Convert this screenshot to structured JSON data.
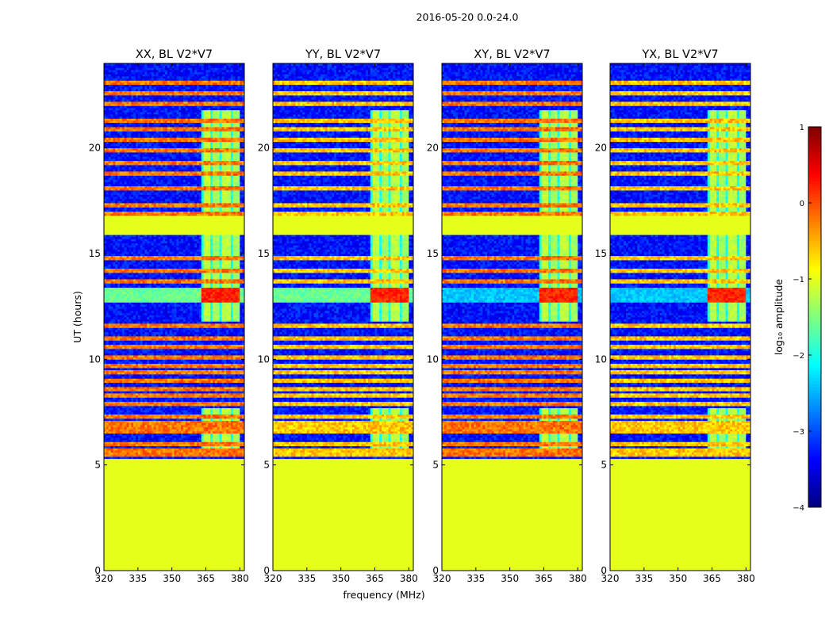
{
  "chart_data": {
    "type": "heatmap",
    "suptitle": "2016-05-20 0.0-24.0",
    "xlabel": "frequency (MHz)",
    "ylabel": "UT (hours)",
    "xlim": [
      320,
      382
    ],
    "ylim": [
      0,
      24
    ],
    "xticks": [
      320,
      335,
      350,
      365,
      380
    ],
    "yticks": [
      0,
      5,
      10,
      15,
      20
    ],
    "colormap": "jet",
    "colorbar": {
      "label": "log₁₀ amplitude",
      "vmin": -4,
      "vmax": 1,
      "ticks": [
        -4,
        -3,
        -2,
        -1,
        0,
        1
      ],
      "tick_labels": [
        "−4",
        "−3",
        "−2",
        "−1",
        "0",
        "1"
      ],
      "colors": [
        "#00007f",
        "#0000ff",
        "#007fff",
        "#00ffff",
        "#7fff7f",
        "#ffff00",
        "#ff7f00",
        "#ff0000",
        "#7f0000"
      ]
    },
    "panels": [
      {
        "title": "XX, BL V2*V7",
        "pol": "XX"
      },
      {
        "title": "YY, BL V2*V7",
        "pol": "YY"
      },
      {
        "title": "XY, BL V2*V7",
        "pol": "XY"
      },
      {
        "title": "YX, BL V2*V7",
        "pol": "YX"
      }
    ],
    "structure": {
      "background_level": -3.3,
      "flagged_level": -1.0,
      "flagged_ut_ranges": [
        [
          0,
          5.3
        ],
        [
          15.9,
          16.8
        ]
      ],
      "active_band_mhz": [
        363,
        380
      ],
      "active_band_level": -1.2,
      "active_band_ut_ranges": [
        [
          5.6,
          7.7
        ],
        [
          11.8,
          15.9
        ],
        [
          16.8,
          21.8
        ]
      ],
      "strong_rfi_ut_range": [
        12.7,
        13.4
      ],
      "strong_rfi_level": 0.2,
      "rfi_ut_lines": [
        5.5,
        5.7,
        6.0,
        6.6,
        6.8,
        7.0,
        7.3,
        7.9,
        8.3,
        8.6,
        9.0,
        9.4,
        9.7,
        10.1,
        10.6,
        11.0,
        11.6,
        13.7,
        14.2,
        14.8,
        16.9,
        17.3,
        18.1,
        18.8,
        19.3,
        19.9,
        20.4,
        20.9,
        21.3,
        22.1,
        22.6,
        23.1
      ]
    }
  }
}
